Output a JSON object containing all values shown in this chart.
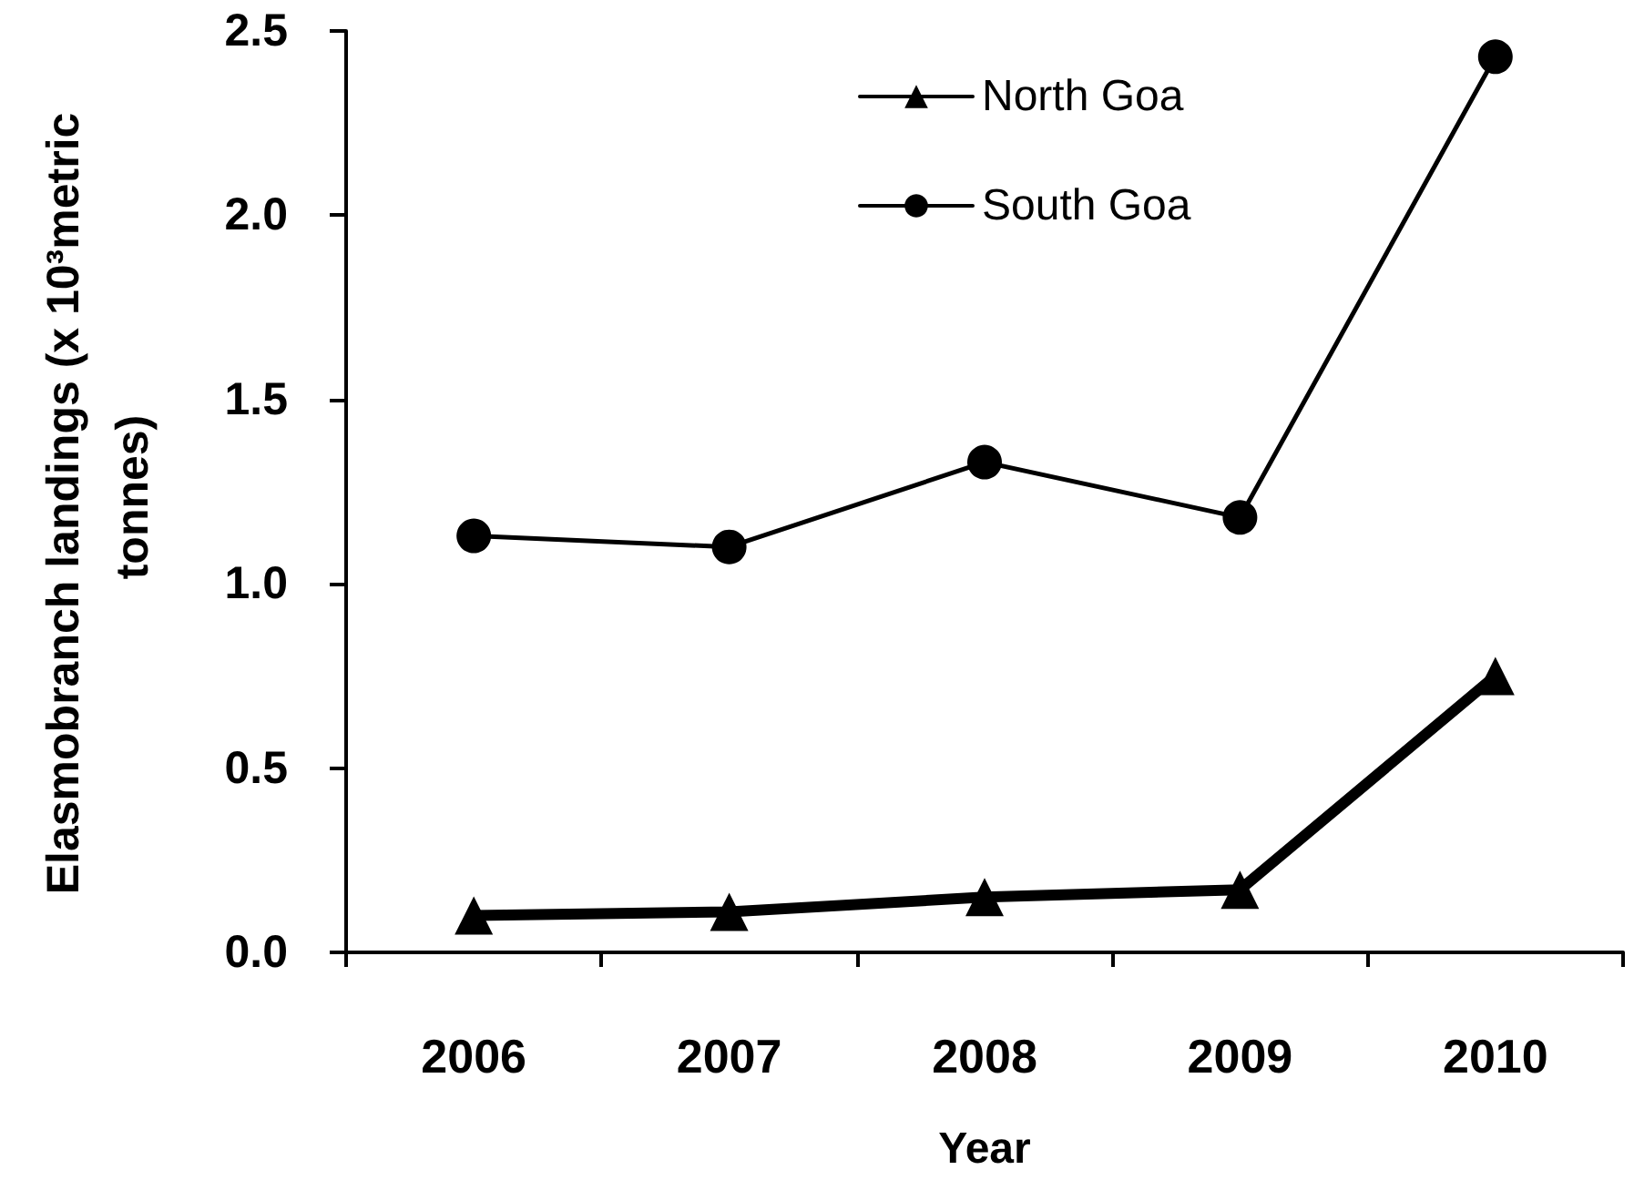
{
  "chart_data": {
    "type": "line",
    "xlabel": "Year",
    "ylabel": "Elasmobranch landings (x 10³metric tonnes)",
    "categories": [
      "2006",
      "2007",
      "2008",
      "2009",
      "2010"
    ],
    "series": [
      {
        "name": "North Goa",
        "color": "#000000",
        "marker": "triangle",
        "values": [
          0.1,
          0.11,
          0.15,
          0.17,
          0.75
        ]
      },
      {
        "name": "South Goa",
        "color": "#000000",
        "marker": "circle",
        "values": [
          1.13,
          1.1,
          1.33,
          1.18,
          2.43
        ]
      }
    ],
    "ylim": [
      0,
      2.5
    ],
    "yticks": [
      {
        "value": 0,
        "label": "0.0"
      },
      0.5,
      {
        "value": 1,
        "label": "1.0"
      },
      1.5,
      {
        "value": 2,
        "label": "2.0"
      },
      2.5
    ],
    "grid": false,
    "legend": "top",
    "line_style": "solid"
  }
}
